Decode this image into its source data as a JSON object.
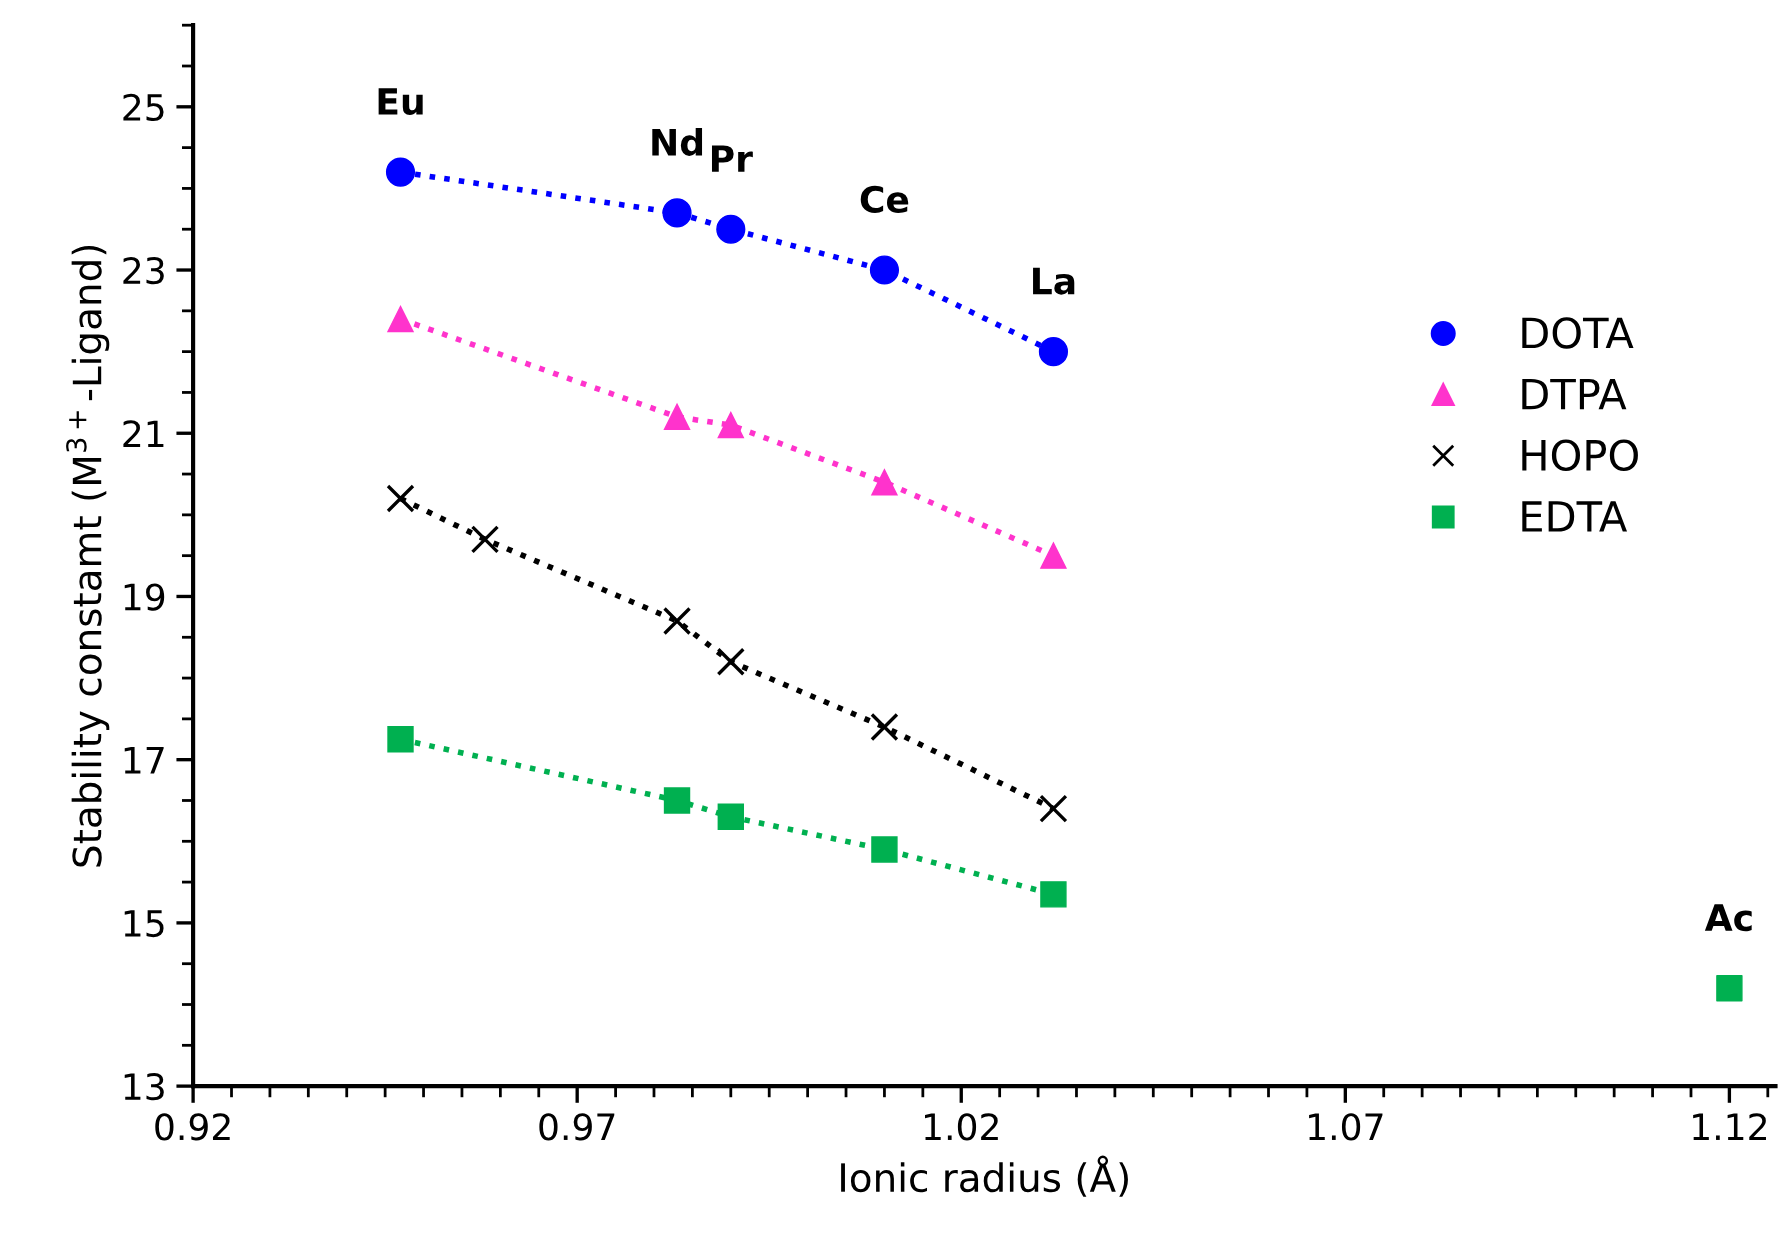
{
  "chart_data": {
    "type": "line",
    "xlabel": "Ionic radius (Å)",
    "ylabel": "Stability constamt (M$^{3+}$-Ligand)",
    "xlim": [
      0.92,
      1.126
    ],
    "ylim": [
      13,
      26
    ],
    "xticks": [
      {
        "value": 0.92,
        "label": "0.92"
      },
      {
        "value": 0.97,
        "label": "0.97"
      },
      {
        "value": 1.02,
        "label": "1.02"
      },
      {
        "value": 1.07,
        "label": "1.07"
      },
      {
        "value": 1.12,
        "label": "1.12"
      },
      {
        "value": 0.925,
        "label": null
      },
      {
        "value": 0.93,
        "label": null
      },
      {
        "value": 0.935,
        "label": null
      },
      {
        "value": 0.94,
        "label": null
      },
      {
        "value": 0.945,
        "label": null
      },
      {
        "value": 0.95,
        "label": null
      },
      {
        "value": 0.955,
        "label": null
      },
      {
        "value": 0.96,
        "label": null
      },
      {
        "value": 0.965,
        "label": null
      },
      {
        "value": 0.975,
        "label": null
      },
      {
        "value": 0.98,
        "label": null
      },
      {
        "value": 0.985,
        "label": null
      },
      {
        "value": 0.99,
        "label": null
      },
      {
        "value": 0.995,
        "label": null
      },
      {
        "value": 1.0,
        "label": null
      },
      {
        "value": 1.005,
        "label": null
      },
      {
        "value": 1.01,
        "label": null
      },
      {
        "value": 1.015,
        "label": null
      },
      {
        "value": 1.025,
        "label": null
      },
      {
        "value": 1.03,
        "label": null
      },
      {
        "value": 1.035,
        "label": null
      },
      {
        "value": 1.04,
        "label": null
      },
      {
        "value": 1.045,
        "label": null
      },
      {
        "value": 1.05,
        "label": null
      },
      {
        "value": 1.055,
        "label": null
      },
      {
        "value": 1.06,
        "label": null
      },
      {
        "value": 1.065,
        "label": null
      },
      {
        "value": 1.075,
        "label": null
      },
      {
        "value": 1.08,
        "label": null
      },
      {
        "value": 1.085,
        "label": null
      },
      {
        "value": 1.09,
        "label": null
      },
      {
        "value": 1.095,
        "label": null
      },
      {
        "value": 1.1,
        "label": null
      },
      {
        "value": 1.105,
        "label": null
      },
      {
        "value": 1.11,
        "label": null
      },
      {
        "value": 1.115,
        "label": null
      },
      {
        "value": 1.125,
        "label": null
      }
    ],
    "yticks": [
      {
        "value": 13,
        "label": "13"
      },
      {
        "value": 15,
        "label": "15"
      },
      {
        "value": 17,
        "label": "17"
      },
      {
        "value": 19,
        "label": "19"
      },
      {
        "value": 21,
        "label": "21"
      },
      {
        "value": 23,
        "label": "23"
      },
      {
        "value": 25,
        "label": "25"
      },
      {
        "value": 13.5,
        "label": null
      },
      {
        "value": 14,
        "label": null
      },
      {
        "value": 14.5,
        "label": null
      },
      {
        "value": 15.5,
        "label": null
      },
      {
        "value": 16,
        "label": null
      },
      {
        "value": 16.5,
        "label": null
      },
      {
        "value": 17.5,
        "label": null
      },
      {
        "value": 18,
        "label": null
      },
      {
        "value": 18.5,
        "label": null
      },
      {
        "value": 19.5,
        "label": null
      },
      {
        "value": 20,
        "label": null
      },
      {
        "value": 20.5,
        "label": null
      },
      {
        "value": 21.5,
        "label": null
      },
      {
        "value": 22,
        "label": null
      },
      {
        "value": 22.5,
        "label": null
      },
      {
        "value": 23.5,
        "label": null
      },
      {
        "value": 24,
        "label": null
      },
      {
        "value": 24.5,
        "label": null
      },
      {
        "value": 25.5,
        "label": null
      },
      {
        "value": 26,
        "label": null
      }
    ],
    "grid": false,
    "legend": "right",
    "line_style": "dotted",
    "series": [
      {
        "name": "DOTA",
        "color": "#0000ff",
        "marker": "circle",
        "x": [
          0.947,
          0.983,
          0.99,
          1.01,
          1.032
        ],
        "values": [
          24.2,
          23.7,
          23.5,
          23.0,
          22.0
        ]
      },
      {
        "name": "DTPA",
        "color": "#ff33cc",
        "marker": "triangle",
        "x": [
          0.947,
          0.983,
          0.99,
          1.01,
          1.032
        ],
        "values": [
          22.4,
          21.2,
          21.1,
          20.4,
          19.5
        ]
      },
      {
        "name": "HOPO",
        "color": "#000000",
        "marker": "cross",
        "x": [
          0.947,
          0.958,
          0.983,
          0.99,
          1.01,
          1.032
        ],
        "values": [
          20.2,
          19.7,
          18.7,
          18.2,
          17.4,
          16.4
        ]
      },
      {
        "name": "EDTA",
        "color": "#00b050",
        "marker": "square",
        "x": [
          0.947,
          0.983,
          0.99,
          1.01,
          1.032
        ],
        "values": [
          17.25,
          16.5,
          16.3,
          15.9,
          15.35
        ]
      },
      {
        "type": "scatter",
        "color": "#00b050",
        "marker": "square",
        "x": [
          1.12
        ],
        "values": [
          14.2
        ]
      }
    ],
    "annotations": [
      {
        "text": "Eu",
        "x": 0.947,
        "y": 24.2
      },
      {
        "text": "Nd",
        "x": 0.983,
        "y": 23.7
      },
      {
        "text": "Pr",
        "x": 0.99,
        "y": 23.5
      },
      {
        "text": "Ce",
        "x": 1.01,
        "y": 23.0
      },
      {
        "text": "La",
        "x": 1.032,
        "y": 22.0
      },
      {
        "text": "Ac",
        "x": 1.12,
        "y": 14.2
      }
    ]
  }
}
